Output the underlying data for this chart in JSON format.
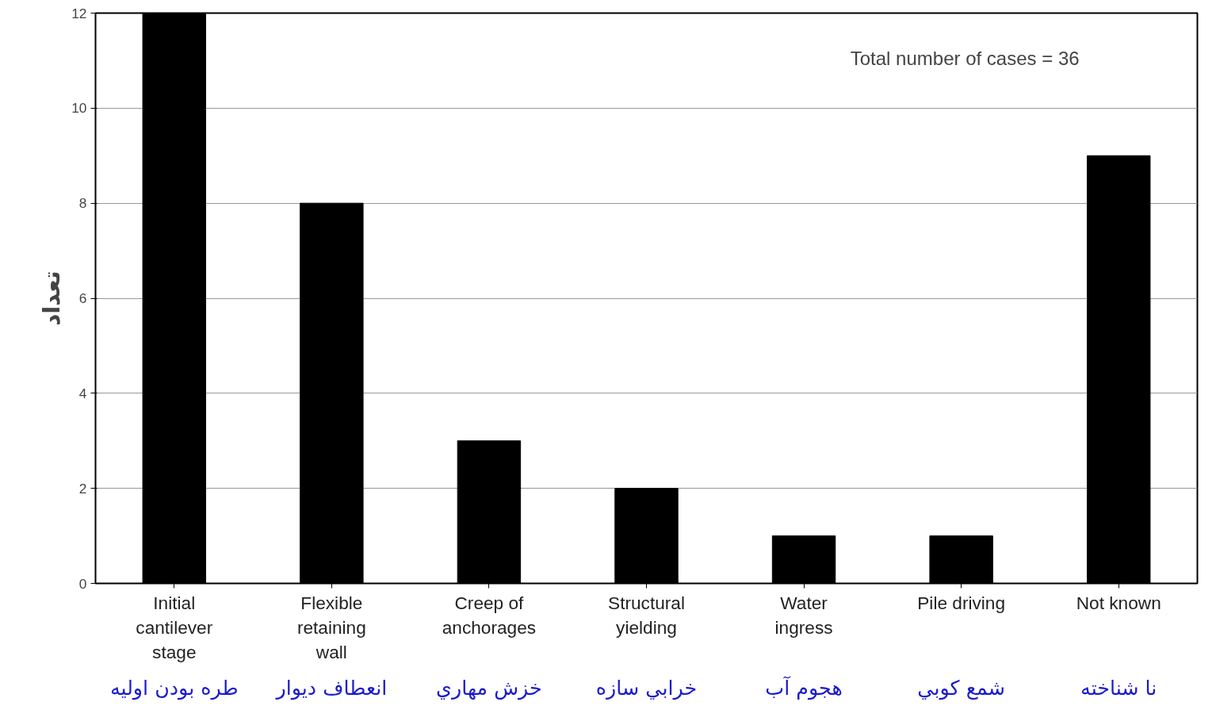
{
  "chart_data": {
    "type": "bar",
    "ylabel": "تعداد",
    "categories": [
      "Initial\ncantilever\nstage",
      "Flexible\nretaining\nwall",
      "Creep of\nanchorages",
      "Structural\nyielding",
      "Water\ningress",
      "Pile driving",
      "Not known"
    ],
    "values": [
      12,
      8,
      3,
      2,
      1,
      1,
      9
    ],
    "color": "#000000",
    "ylim": [
      0,
      12
    ],
    "yticks": [
      0,
      2,
      4,
      6,
      8,
      10,
      12
    ],
    "grid": "y",
    "annotations": [
      "Total number of cases = 36",
      "طره بودن اوليه",
      "انعطاف ديوار",
      "خزش مهاري",
      "خرابي سازه",
      "هجوم آب",
      "شمع كوبي",
      "نا شناخته"
    ]
  }
}
